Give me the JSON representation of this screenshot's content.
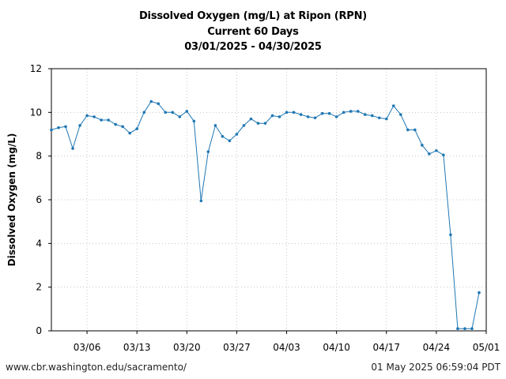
{
  "title_lines": [
    "Dissolved Oxygen (mg/L) at Ripon (RPN)",
    "Current 60 Days",
    "03/01/2025 - 04/30/2025"
  ],
  "footer": {
    "left": "www.cbr.washington.edu/sacramento/",
    "right": "01 May 2025 06:59:04 PDT"
  },
  "chart_data": {
    "type": "line",
    "ylabel": "Dissolved Oxygen (mg/L)",
    "xlabel": "",
    "ylim": [
      0,
      12
    ],
    "yticks": [
      0,
      2,
      4,
      6,
      8,
      10,
      12
    ],
    "xlim": [
      "2025-03-01",
      "2025-05-01"
    ],
    "xticks": [
      {
        "date": "2025-03-06",
        "label": "03/06"
      },
      {
        "date": "2025-03-13",
        "label": "03/13"
      },
      {
        "date": "2025-03-20",
        "label": "03/20"
      },
      {
        "date": "2025-03-27",
        "label": "03/27"
      },
      {
        "date": "2025-04-03",
        "label": "04/03"
      },
      {
        "date": "2025-04-10",
        "label": "04/10"
      },
      {
        "date": "2025-04-17",
        "label": "04/17"
      },
      {
        "date": "2025-04-24",
        "label": "04/24"
      },
      {
        "date": "2025-05-01",
        "label": "05/01"
      }
    ],
    "grid": true,
    "color": "#1f77b4",
    "x": [
      "2025-03-01",
      "2025-03-02",
      "2025-03-03",
      "2025-03-04",
      "2025-03-05",
      "2025-03-06",
      "2025-03-07",
      "2025-03-08",
      "2025-03-09",
      "2025-03-10",
      "2025-03-11",
      "2025-03-12",
      "2025-03-13",
      "2025-03-14",
      "2025-03-15",
      "2025-03-16",
      "2025-03-17",
      "2025-03-18",
      "2025-03-19",
      "2025-03-20",
      "2025-03-21",
      "2025-03-22",
      "2025-03-23",
      "2025-03-24",
      "2025-03-25",
      "2025-03-26",
      "2025-03-27",
      "2025-03-28",
      "2025-03-29",
      "2025-03-30",
      "2025-03-31",
      "2025-04-01",
      "2025-04-02",
      "2025-04-03",
      "2025-04-04",
      "2025-04-05",
      "2025-04-06",
      "2025-04-07",
      "2025-04-08",
      "2025-04-09",
      "2025-04-10",
      "2025-04-11",
      "2025-04-12",
      "2025-04-13",
      "2025-04-14",
      "2025-04-15",
      "2025-04-16",
      "2025-04-17",
      "2025-04-18",
      "2025-04-19",
      "2025-04-20",
      "2025-04-21",
      "2025-04-22",
      "2025-04-23",
      "2025-04-24",
      "2025-04-25",
      "2025-04-26",
      "2025-04-27",
      "2025-04-28",
      "2025-04-29",
      "2025-04-30"
    ],
    "y": [
      9.2,
      9.3,
      9.35,
      8.35,
      9.4,
      9.85,
      9.8,
      9.65,
      9.65,
      9.45,
      9.35,
      9.05,
      9.25,
      10.0,
      10.5,
      10.4,
      10.0,
      10.0,
      9.8,
      10.05,
      9.6,
      5.95,
      8.2,
      9.4,
      8.9,
      8.7,
      9.0,
      9.4,
      9.7,
      9.5,
      9.5,
      9.85,
      9.8,
      10.0,
      10.0,
      9.9,
      9.8,
      9.75,
      9.95,
      9.95,
      9.8,
      10.0,
      10.05,
      10.05,
      9.9,
      9.85,
      9.75,
      9.7,
      10.3,
      9.9,
      9.2,
      9.2,
      8.5,
      8.1,
      8.25,
      8.05,
      4.4,
      0.1,
      0.1,
      0.1,
      1.75
    ]
  }
}
